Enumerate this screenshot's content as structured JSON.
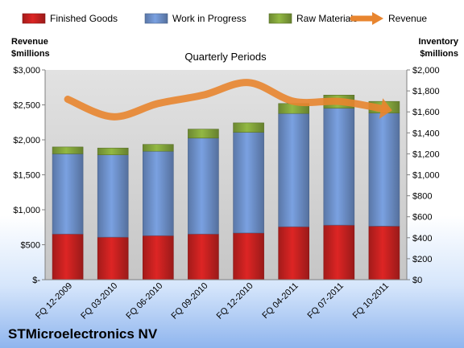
{
  "chart_data": {
    "type": "bar",
    "stacked": true,
    "subtitle": "Quarterly Periods",
    "company": "STMicroelectronics NV",
    "left_axis": {
      "label_line1": "Revenue",
      "label_line2": "$millions",
      "range": [
        0,
        3000
      ],
      "ticks": [
        0,
        500,
        1000,
        1500,
        2000,
        2500,
        3000
      ],
      "tick_labels": [
        "$-",
        "$500",
        "$1,000",
        "$1,500",
        "$2,000",
        "$2,500",
        "$3,000"
      ]
    },
    "right_axis": {
      "label_line1": "Inventory",
      "label_line2": "$millions",
      "range": [
        0,
        2000
      ],
      "ticks": [
        0,
        200,
        400,
        600,
        800,
        1000,
        1200,
        1400,
        1600,
        1800,
        2000
      ],
      "tick_labels": [
        "$0",
        "$200",
        "$400",
        "$600",
        "$800",
        "$1,000",
        "$1,200",
        "$1,400",
        "$1,600",
        "$1,800",
        "$2,000"
      ]
    },
    "categories": [
      "FQ 12-2009",
      "FQ 03-2010",
      "FQ 06-2010",
      "FQ 09-2010",
      "FQ 12-2010",
      "FQ 04-2011",
      "FQ 07-2011",
      "FQ 10-2011"
    ],
    "series": [
      {
        "name": "Finished Goods",
        "axis": "right",
        "color": "#c0201f",
        "values": [
          435,
          405,
          420,
          435,
          445,
          505,
          520,
          510
        ]
      },
      {
        "name": "Work in Progress",
        "axis": "right",
        "color": "#6a8cc4",
        "values": [
          765,
          785,
          805,
          915,
          960,
          1080,
          1115,
          1080
        ]
      },
      {
        "name": "Raw Materials",
        "axis": "right",
        "color": "#7fa03a",
        "values": [
          65,
          65,
          65,
          85,
          90,
          95,
          125,
          110
        ]
      }
    ],
    "line": {
      "name": "Revenue",
      "axis": "left",
      "color": "#e8852f",
      "values": [
        2580,
        2330,
        2520,
        2640,
        2820,
        2550,
        2550,
        2440
      ]
    },
    "grid": false,
    "legend_position": "top"
  }
}
